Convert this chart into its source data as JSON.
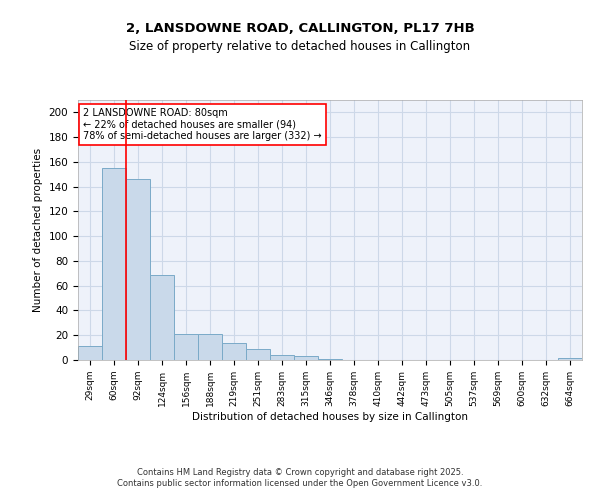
{
  "title_line1": "2, LANSDOWNE ROAD, CALLINGTON, PL17 7HB",
  "title_line2": "Size of property relative to detached houses in Callington",
  "xlabel": "Distribution of detached houses by size in Callington",
  "ylabel": "Number of detached properties",
  "bar_labels": [
    "29sqm",
    "60sqm",
    "92sqm",
    "124sqm",
    "156sqm",
    "188sqm",
    "219sqm",
    "251sqm",
    "283sqm",
    "315sqm",
    "346sqm",
    "378sqm",
    "410sqm",
    "442sqm",
    "473sqm",
    "505sqm",
    "537sqm",
    "569sqm",
    "600sqm",
    "632sqm",
    "664sqm"
  ],
  "bar_values": [
    11,
    155,
    146,
    69,
    21,
    21,
    14,
    9,
    4,
    3,
    1,
    0,
    0,
    0,
    0,
    0,
    0,
    0,
    0,
    0,
    2
  ],
  "bar_color": "#c9d9ea",
  "bar_edge_color": "#7aaac8",
  "grid_color": "#cdd8e8",
  "background_color": "#eef2fa",
  "vline_x": 1.5,
  "vline_color": "red",
  "annotation_line1": "2 LANSDOWNE ROAD: 80sqm",
  "annotation_line2": "← 22% of detached houses are smaller (94)",
  "annotation_line3": "78% of semi-detached houses are larger (332) →",
  "ylim": [
    0,
    210
  ],
  "yticks": [
    0,
    20,
    40,
    60,
    80,
    100,
    120,
    140,
    160,
    180,
    200
  ],
  "footer_line1": "Contains HM Land Registry data © Crown copyright and database right 2025.",
  "footer_line2": "Contains public sector information licensed under the Open Government Licence v3.0."
}
